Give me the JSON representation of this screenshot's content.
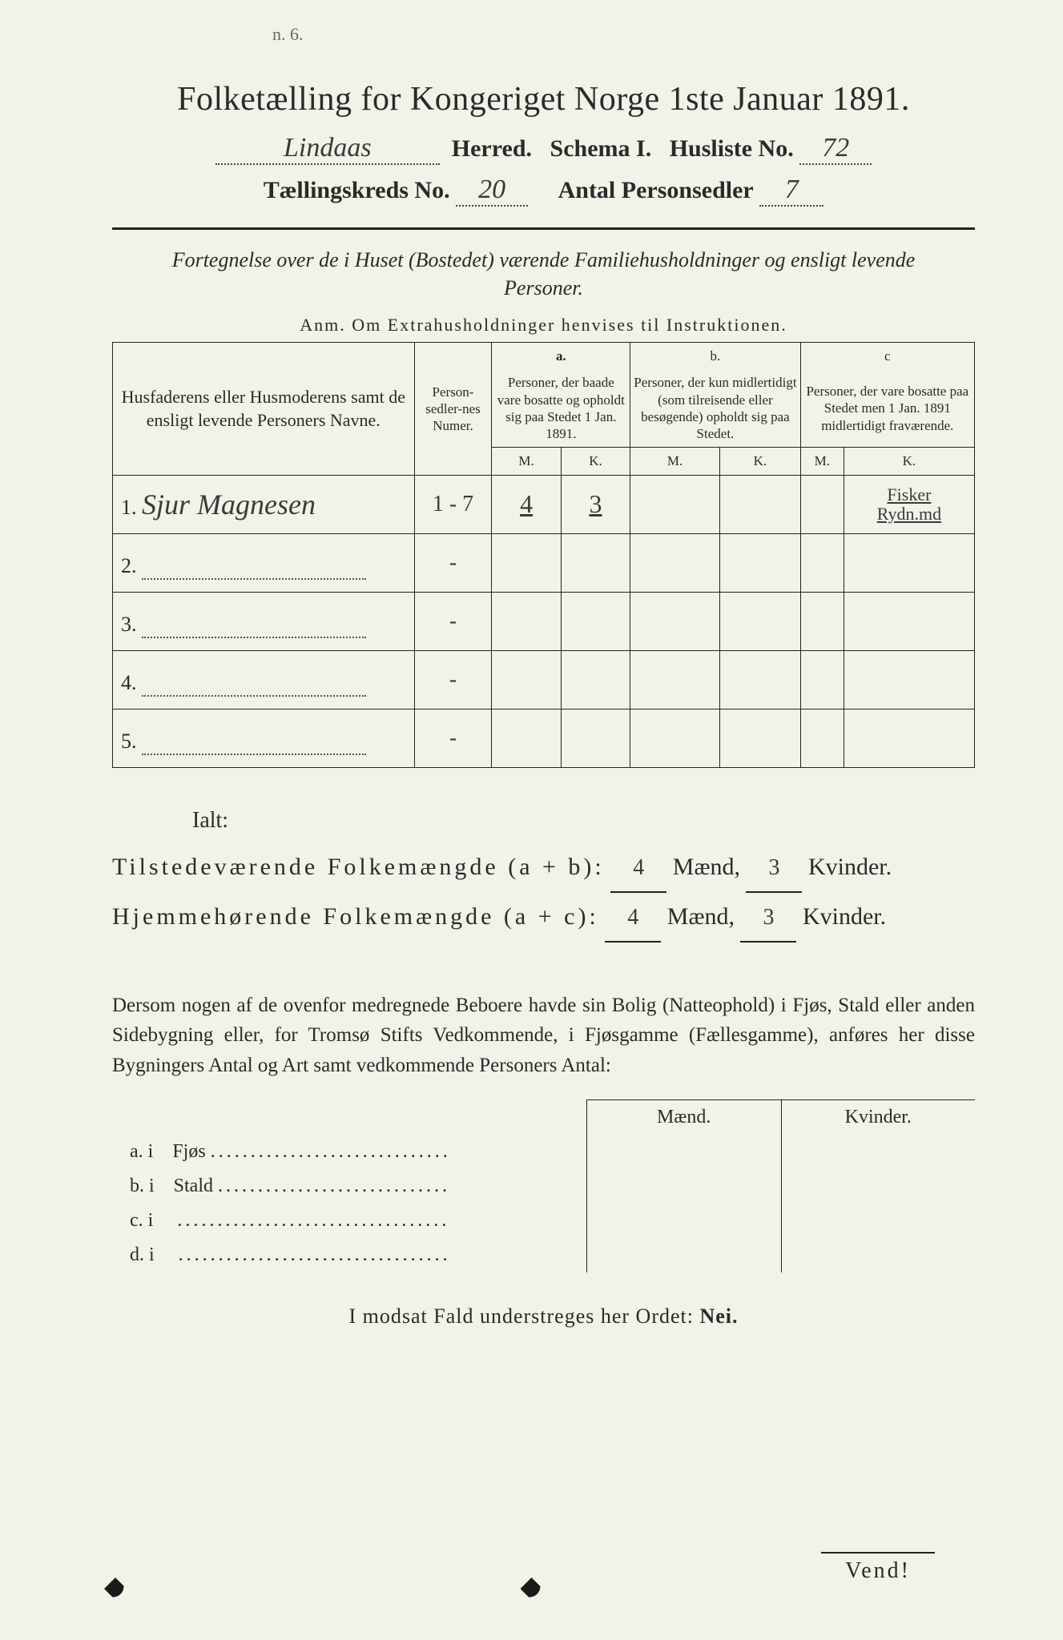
{
  "header": {
    "title": "Folketælling for Kongeriget Norge 1ste Januar 1891.",
    "herred_value": "Lindaas",
    "herred_label": "Herred.",
    "schema_label": "Schema I.",
    "husliste_label": "Husliste No.",
    "husliste_no": "72",
    "kreds_label": "Tællingskreds No.",
    "kreds_no": "20",
    "antal_label": "Antal Personsedler",
    "antal_value": "7"
  },
  "subheading": "Fortegnelse over de i Huset (Bostedet) værende Familiehusholdninger og ensligt levende Personer.",
  "anm": "Anm.  Om Extrahusholdninger henvises til Instruktionen.",
  "table": {
    "col_names": "Husfaderens eller Husmoderens samt de ensligt levende Personers Navne.",
    "col_numer": "Person-sedler-nes Numer.",
    "col_a_top": "a.",
    "col_a": "Personer, der baade vare bosatte og opholdt sig paa Stedet 1 Jan. 1891.",
    "col_b_top": "b.",
    "col_b": "Personer, der kun midlertidigt (som tilreisende eller besøgende) opholdt sig paa Stedet.",
    "col_c_top": "c",
    "col_c": "Personer, der vare bosatte paa Stedet men 1 Jan. 1891 midlertidigt fraværende.",
    "mk_m": "M.",
    "mk_k": "K.",
    "rows": [
      {
        "n": "1.",
        "name": "Sjur Magnesen",
        "numer": "1 - 7",
        "a_m": "4",
        "a_k": "3",
        "b_m": "",
        "b_k": "",
        "c_m": "",
        "c_k": "",
        "note": "Fisker\nRydn.md"
      },
      {
        "n": "2.",
        "name": "",
        "numer": "-",
        "a_m": "",
        "a_k": "",
        "b_m": "",
        "b_k": "",
        "c_m": "",
        "c_k": "",
        "note": ""
      },
      {
        "n": "3.",
        "name": "",
        "numer": "-",
        "a_m": "",
        "a_k": "",
        "b_m": "",
        "b_k": "",
        "c_m": "",
        "c_k": "",
        "note": ""
      },
      {
        "n": "4.",
        "name": "",
        "numer": "-",
        "a_m": "",
        "a_k": "",
        "b_m": "",
        "b_k": "",
        "c_m": "",
        "c_k": "",
        "note": ""
      },
      {
        "n": "5.",
        "name": "",
        "numer": "-",
        "a_m": "",
        "a_k": "",
        "b_m": "",
        "b_k": "",
        "c_m": "",
        "c_k": "",
        "note": ""
      }
    ]
  },
  "totals": {
    "ialt": "Ialt:",
    "line1_label": "Tilstedeværende  Folkemængde (a + b):",
    "line2_label": "Hjemmehørende  Folkemængde (a + c):",
    "maend_label": "Mænd,",
    "kvinder_label": "Kvinder.",
    "l1_m": "4",
    "l1_k": "3",
    "l2_m": "4",
    "l2_k": "3"
  },
  "paragraph": "Dersom nogen af de ovenfor medregnede Beboere havde sin Bolig (Natteophold) i Fjøs, Stald eller anden Sidebygning eller, for Tromsø Stifts Vedkommende, i Fjøsgamme (Fællesgamme), anføres her disse Bygningers Antal og Art samt vedkommende Personers Antal:",
  "side": {
    "maend": "Mænd.",
    "kvinder": "Kvinder.",
    "rows": [
      {
        "k": "a.  i",
        "t": "Fjøs"
      },
      {
        "k": "b.  i",
        "t": "Stald"
      },
      {
        "k": "c.  i",
        "t": ""
      },
      {
        "k": "d.  i",
        "t": ""
      }
    ]
  },
  "nei_line": "I modsat Fald understreges her Ordet: Nei.",
  "vend": "Vend!",
  "topmark": "n. 6."
}
